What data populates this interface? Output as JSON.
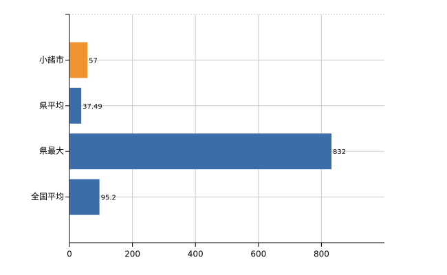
{
  "chart_data": {
    "type": "bar",
    "orientation": "horizontal",
    "categories": [
      "小諸市",
      "県平均",
      "県最大",
      "全国平均"
    ],
    "values": [
      57,
      37.49,
      832,
      95.2
    ],
    "colors": [
      "#f0922f",
      "#3b6ea8",
      "#3b6ea8",
      "#3b6ea8"
    ],
    "xlim": [
      0,
      1000
    ],
    "xticks": [
      0,
      200,
      400,
      600,
      800
    ],
    "grid": true
  }
}
